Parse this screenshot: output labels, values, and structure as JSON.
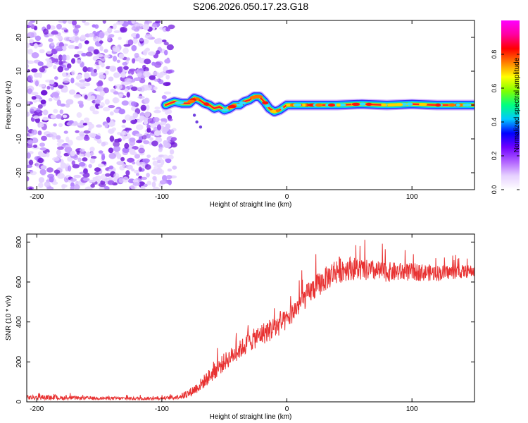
{
  "title": "S206.2026.050.17.23.G18",
  "chart_data": [
    {
      "type": "heatmap",
      "name": "spectrogram",
      "xlabel": "Height of straight line (km)",
      "ylabel": "Frequency (Hz)",
      "xlim": [
        -208,
        150
      ],
      "ylim": [
        -25,
        25
      ],
      "xticks": [
        -200,
        -100,
        0,
        100
      ],
      "yticks": [
        20,
        10,
        0,
        -10,
        -20
      ],
      "noise_region_km": [
        -208,
        -92
      ],
      "signal_track": {
        "x": [
          -97,
          -90,
          -84,
          -78,
          -74,
          -70,
          -66,
          -62,
          -58,
          -54,
          -50,
          -46,
          -42,
          -38,
          -34,
          -30,
          -26,
          -22,
          -18,
          -14,
          -10,
          -6,
          -2,
          0,
          20,
          40,
          60,
          80,
          100,
          120,
          150
        ],
        "freq": [
          0,
          1,
          0.5,
          0.5,
          2,
          1.5,
          0.5,
          0,
          -1,
          -0.5,
          -1.5,
          -1,
          0,
          0,
          1,
          1.5,
          2.5,
          2.5,
          1,
          -1,
          -2,
          -1.5,
          -0.5,
          0,
          0,
          0,
          0.3,
          0,
          0.3,
          0,
          0
        ]
      },
      "colorbar": {
        "label": "Normalized spectral amplitude",
        "ticks": [
          0.0,
          0.2,
          0.4,
          0.6,
          0.8
        ],
        "range": [
          0,
          1
        ],
        "colors": [
          "#ffffff",
          "#e6d0ff",
          "#b060ff",
          "#7000ff",
          "#0000ff",
          "#00c8ff",
          "#00ff80",
          "#80ff00",
          "#ffff00",
          "#ff8000",
          "#ff0000",
          "#ff00a0",
          "#ff00ff"
        ]
      }
    },
    {
      "type": "line",
      "name": "snr",
      "xlabel": "Height of straight line (km)",
      "ylabel": "SNR (10 * v/v)",
      "xlim": [
        -208,
        150
      ],
      "ylim": [
        0,
        840
      ],
      "xticks": [
        -200,
        -100,
        0,
        100
      ],
      "yticks": [
        0,
        200,
        400,
        600,
        800
      ],
      "color": "#e83232",
      "x": [
        -208,
        -180,
        -150,
        -120,
        -100,
        -90,
        -80,
        -70,
        -60,
        -50,
        -40,
        -30,
        -20,
        -10,
        0,
        10,
        20,
        30,
        40,
        50,
        60,
        80,
        100,
        120,
        150
      ],
      "mean": [
        22,
        20,
        18,
        17,
        18,
        22,
        35,
        80,
        140,
        200,
        250,
        300,
        340,
        370,
        410,
        490,
        560,
        610,
        660,
        670,
        660,
        650,
        650,
        645,
        655
      ],
      "spread": [
        12,
        10,
        8,
        8,
        8,
        10,
        20,
        30,
        40,
        45,
        45,
        50,
        55,
        60,
        50,
        55,
        60,
        60,
        70,
        60,
        55,
        50,
        45,
        40,
        30
      ]
    }
  ]
}
